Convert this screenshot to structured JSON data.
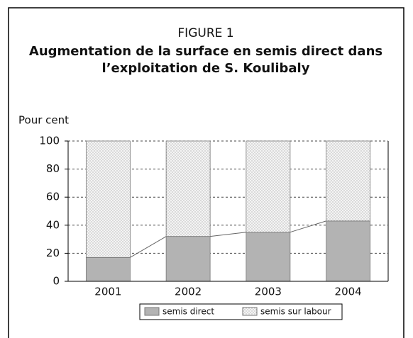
{
  "chart_data": {
    "type": "stacked-bar",
    "title": "FIGURE 1",
    "subtitle": [
      "Augmentation de la surface en semis direct dans",
      "l’exploitation de S. Koulibaly"
    ],
    "y_label": "Pour cent",
    "categories": [
      "2001",
      "2002",
      "2003",
      "2004"
    ],
    "series": [
      {
        "name": "semis direct",
        "color": "#b3b3b3",
        "values": [
          17,
          32,
          35,
          43
        ]
      },
      {
        "name": "semis sur labour",
        "color": "#f2f2f2",
        "values": [
          83,
          68,
          65,
          57
        ]
      }
    ],
    "ylim": [
      0,
      100
    ],
    "yticks": [
      0,
      20,
      40,
      60,
      80,
      100
    ],
    "grid": true
  }
}
